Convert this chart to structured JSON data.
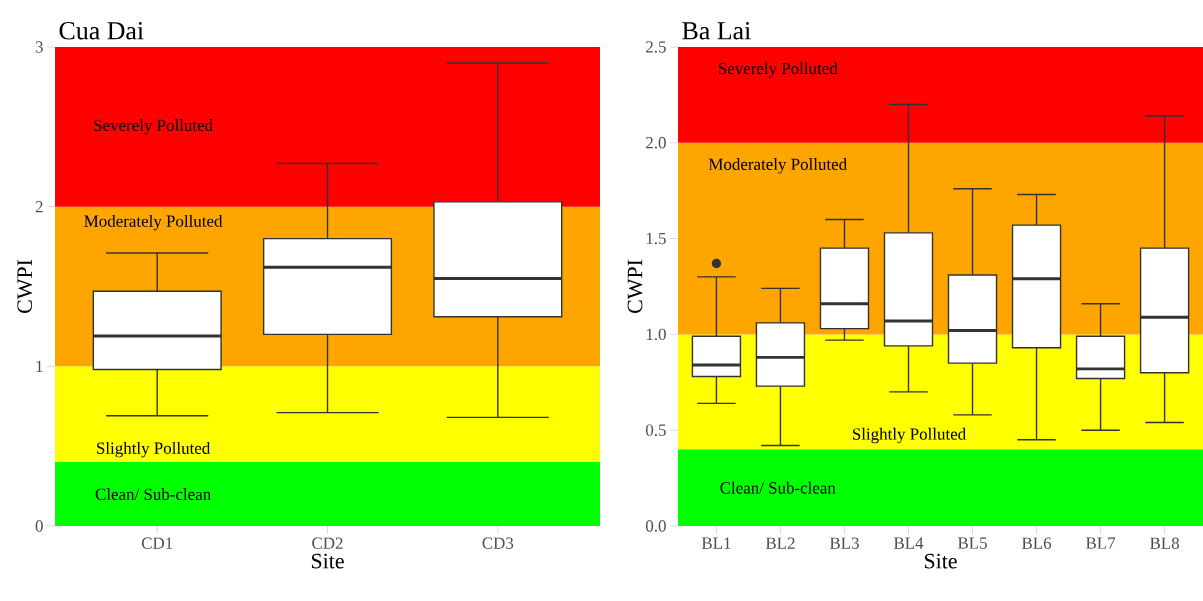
{
  "chart_data": [
    {
      "type": "box",
      "title": "Cua Dai",
      "xlabel": "Site",
      "ylabel": "CWPI",
      "categories": [
        "CD1",
        "CD2",
        "CD3"
      ],
      "boxes": [
        {
          "low": 0.69,
          "q1": 0.98,
          "median": 1.19,
          "q3": 1.47,
          "high": 1.71
        },
        {
          "low": 0.71,
          "q1": 1.2,
          "median": 1.62,
          "q3": 1.8,
          "high": 2.27
        },
        {
          "low": 0.68,
          "q1": 1.31,
          "median": 1.55,
          "q3": 2.03,
          "high": 2.9
        }
      ],
      "ylim": [
        0,
        3
      ],
      "yticks": [
        0,
        1,
        2,
        3
      ],
      "bands": [
        {
          "axis": "y",
          "from": 0,
          "to": 0.4,
          "label": "Clean/ Sub-clean",
          "color": "#00ff00"
        },
        {
          "axis": "y",
          "from": 0.4,
          "to": 1,
          "label": "Slightly Polluted",
          "color": "#ffff00"
        },
        {
          "axis": "y",
          "from": 1,
          "to": 2,
          "label": "Moderately Polluted",
          "color": "#ffa500"
        },
        {
          "axis": "y",
          "from": 2,
          "to": 3,
          "label": "Severely Polluted",
          "color": "#ff0000"
        }
      ]
    },
    {
      "type": "box",
      "title": "Ba Lai",
      "xlabel": "Site",
      "ylabel": "CWPI",
      "categories": [
        "BL1",
        "BL2",
        "BL3",
        "BL4",
        "BL5",
        "BL6",
        "BL7",
        "BL8"
      ],
      "boxes": [
        {
          "low": 0.64,
          "q1": 0.78,
          "median": 0.84,
          "q3": 0.99,
          "high": 1.3,
          "outliers": [
            1.37
          ]
        },
        {
          "low": 0.42,
          "q1": 0.73,
          "median": 0.88,
          "q3": 1.06,
          "high": 1.24
        },
        {
          "low": 0.97,
          "q1": 1.03,
          "median": 1.16,
          "q3": 1.45,
          "high": 1.6
        },
        {
          "low": 0.7,
          "q1": 0.94,
          "median": 1.07,
          "q3": 1.53,
          "high": 2.2
        },
        {
          "low": 0.58,
          "q1": 0.85,
          "median": 1.02,
          "q3": 1.31,
          "high": 1.76
        },
        {
          "low": 0.45,
          "q1": 0.93,
          "median": 1.29,
          "q3": 1.57,
          "high": 1.73
        },
        {
          "low": 0.5,
          "q1": 0.77,
          "median": 0.82,
          "q3": 0.99,
          "high": 1.16
        },
        {
          "low": 0.54,
          "q1": 0.8,
          "median": 1.09,
          "q3": 1.45,
          "high": 2.14
        }
      ],
      "ylim": [
        0,
        2.5
      ],
      "yticks": [
        {
          "value": 0,
          "label": "0.0"
        },
        {
          "value": 0.5,
          "label": "0.5"
        },
        {
          "value": 1,
          "label": "1.0"
        },
        {
          "value": 1.5,
          "label": "1.5"
        },
        {
          "value": 2,
          "label": "2.0"
        },
        {
          "value": 2.5,
          "label": "2.5"
        }
      ],
      "bands": [
        {
          "axis": "y",
          "from": 0,
          "to": 0.4,
          "label": "Clean/ Sub-clean",
          "color": "#00ff00"
        },
        {
          "axis": "y",
          "from": 0.4,
          "to": 1,
          "label": "Slightly Polluted",
          "color": "#ffff00"
        },
        {
          "axis": "y",
          "from": 1,
          "to": 2,
          "label": "Moderately Polluted",
          "color": "#ffa500"
        },
        {
          "axis": "y",
          "from": 2,
          "to": 2.5,
          "label": "Severely Polluted",
          "color": "#ff0000"
        }
      ]
    }
  ]
}
